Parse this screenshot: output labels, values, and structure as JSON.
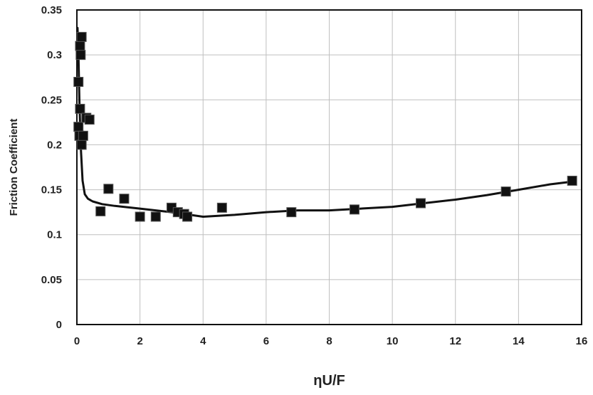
{
  "chart_data": {
    "type": "scatter",
    "xlabel": "ηU/F",
    "ylabel": "Friction Coefficient",
    "xlim": [
      0,
      16
    ],
    "ylim": [
      0,
      0.35
    ],
    "x_ticks": [
      0,
      2,
      4,
      6,
      8,
      10,
      12,
      14,
      16
    ],
    "y_ticks": [
      0,
      0.05,
      0.1,
      0.15,
      0.2,
      0.25,
      0.3,
      0.35
    ],
    "x_tick_labels": [
      "0",
      "2",
      "4",
      "6",
      "8",
      "10",
      "12",
      "14",
      "16"
    ],
    "y_tick_labels": [
      "0",
      "0.05",
      "0.1",
      "0.15",
      "0.2",
      "0.25",
      "0.3",
      "0.35"
    ],
    "grid": true,
    "legend": "none",
    "series": [
      {
        "kind": "markers",
        "marker": "square",
        "color": "#111111",
        "points": [
          [
            0.05,
            0.27
          ],
          [
            0.1,
            0.31
          ],
          [
            0.15,
            0.32
          ],
          [
            0.12,
            0.3
          ],
          [
            0.05,
            0.22
          ],
          [
            0.08,
            0.21
          ],
          [
            0.1,
            0.24
          ],
          [
            0.15,
            0.2
          ],
          [
            0.2,
            0.21
          ],
          [
            0.3,
            0.23
          ],
          [
            0.4,
            0.228
          ],
          [
            0.75,
            0.126
          ],
          [
            1.0,
            0.151
          ],
          [
            1.5,
            0.14
          ],
          [
            2.0,
            0.12
          ],
          [
            2.5,
            0.12
          ],
          [
            3.0,
            0.13
          ],
          [
            3.2,
            0.125
          ],
          [
            3.4,
            0.123
          ],
          [
            3.5,
            0.12
          ],
          [
            4.6,
            0.13
          ],
          [
            6.8,
            0.125
          ],
          [
            8.8,
            0.128
          ],
          [
            10.9,
            0.135
          ],
          [
            13.6,
            0.148
          ],
          [
            15.7,
            0.16
          ]
        ]
      },
      {
        "kind": "line",
        "color": "#111111",
        "points": [
          [
            0.02,
            0.33
          ],
          [
            0.05,
            0.3
          ],
          [
            0.08,
            0.25
          ],
          [
            0.12,
            0.2
          ],
          [
            0.18,
            0.16
          ],
          [
            0.25,
            0.145
          ],
          [
            0.35,
            0.14
          ],
          [
            0.5,
            0.137
          ],
          [
            0.8,
            0.134
          ],
          [
            1.2,
            0.132
          ],
          [
            2.0,
            0.129
          ],
          [
            3.0,
            0.125
          ],
          [
            4.0,
            0.12
          ],
          [
            5.0,
            0.122
          ],
          [
            6.0,
            0.125
          ],
          [
            7.0,
            0.127
          ],
          [
            8.0,
            0.127
          ],
          [
            9.0,
            0.129
          ],
          [
            10.0,
            0.131
          ],
          [
            11.0,
            0.135
          ],
          [
            12.0,
            0.139
          ],
          [
            13.0,
            0.144
          ],
          [
            14.0,
            0.15
          ],
          [
            15.0,
            0.156
          ],
          [
            15.7,
            0.159
          ]
        ]
      }
    ]
  }
}
